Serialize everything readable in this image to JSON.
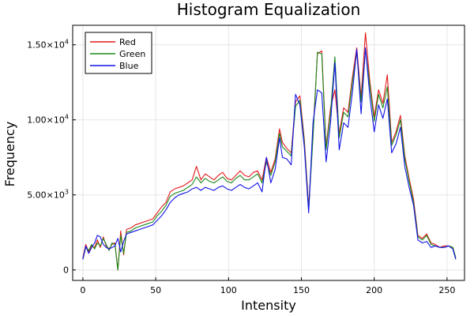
{
  "chart_data": {
    "type": "line",
    "title": "Histogram Equalization",
    "xlabel": "Intensity",
    "ylabel": "Frequency",
    "xlim": [
      -7,
      262
    ],
    "ylim": [
      -700,
      16300
    ],
    "x_ticks": [
      0,
      50,
      100,
      150,
      200,
      250
    ],
    "x_tick_labels": [
      "0",
      "50",
      "100",
      "150",
      "200",
      "250"
    ],
    "y_ticks": [
      0,
      5000,
      10000,
      15000
    ],
    "y_tick_labels": [
      {
        "mantissa": "0",
        "exponent": ""
      },
      {
        "mantissa": "5.00×10",
        "exponent": "3"
      },
      {
        "mantissa": "1.00×10",
        "exponent": "4"
      },
      {
        "mantissa": "1.50×10",
        "exponent": "4"
      }
    ],
    "grid": true,
    "legend_position": "top-left",
    "series": [
      {
        "name": "Red",
        "color": "#e41a1c",
        "x": [
          0,
          2,
          4,
          6,
          8,
          10,
          12,
          14,
          16,
          18,
          20,
          22,
          24,
          26,
          28,
          30,
          33,
          36,
          39,
          42,
          45,
          48,
          51,
          54,
          57,
          60,
          63,
          66,
          69,
          72,
          75,
          78,
          81,
          84,
          87,
          90,
          93,
          96,
          99,
          102,
          105,
          108,
          111,
          114,
          117,
          120,
          123,
          126,
          129,
          132,
          135,
          137,
          140,
          143,
          146,
          149,
          152,
          155,
          158,
          161,
          164,
          167,
          170,
          173,
          176,
          179,
          182,
          185,
          188,
          191,
          194,
          197,
          200,
          203,
          206,
          209,
          212,
          215,
          218,
          221,
          224,
          227,
          230,
          233,
          236,
          239,
          242,
          245,
          248,
          251,
          254,
          256
        ],
        "y": [
          800,
          1700,
          1200,
          1600,
          1500,
          2000,
          1500,
          2200,
          1600,
          1400,
          1700,
          1800,
          0,
          2600,
          1000,
          2700,
          2800,
          3000,
          3100,
          3200,
          3300,
          3400,
          3800,
          4200,
          4500,
          5200,
          5400,
          5500,
          5600,
          5800,
          6000,
          6900,
          6000,
          6400,
          6200,
          6000,
          6300,
          6500,
          6100,
          6000,
          6300,
          6600,
          6300,
          6200,
          6500,
          6600,
          6000,
          7500,
          6500,
          7400,
          9400,
          8500,
          8100,
          7800,
          11200,
          11600,
          8700,
          4200,
          9100,
          14400,
          14600,
          8200,
          10800,
          12000,
          9100,
          10800,
          10500,
          12800,
          14800,
          11500,
          15800,
          12600,
          10200,
          12000,
          11100,
          13000,
          8500,
          9200,
          10300,
          7600,
          6100,
          4700,
          2300,
          2100,
          2400,
          1800,
          1700,
          1500,
          1600,
          1600,
          1500,
          800
        ]
      },
      {
        "name": "Green",
        "color": "#1a8a1a",
        "x": [
          0,
          2,
          4,
          6,
          8,
          10,
          12,
          14,
          16,
          18,
          20,
          22,
          24,
          26,
          28,
          30,
          33,
          36,
          39,
          42,
          45,
          48,
          51,
          54,
          57,
          60,
          63,
          66,
          69,
          72,
          75,
          78,
          81,
          84,
          87,
          90,
          93,
          96,
          99,
          102,
          105,
          108,
          111,
          114,
          117,
          120,
          123,
          126,
          129,
          132,
          135,
          137,
          140,
          143,
          146,
          149,
          152,
          155,
          158,
          161,
          164,
          167,
          170,
          173,
          176,
          179,
          182,
          185,
          188,
          191,
          194,
          197,
          200,
          203,
          206,
          209,
          212,
          215,
          218,
          221,
          224,
          227,
          230,
          233,
          236,
          239,
          242,
          245,
          248,
          251,
          254,
          256
        ],
        "y": [
          700,
          1500,
          1300,
          1700,
          1400,
          1800,
          1600,
          2100,
          1700,
          1300,
          1800,
          1700,
          0,
          2300,
          1100,
          2500,
          2600,
          2800,
          2900,
          3000,
          3100,
          3200,
          3600,
          3900,
          4300,
          4900,
          5100,
          5200,
          5300,
          5500,
          5700,
          6200,
          5800,
          6100,
          5900,
          5800,
          6000,
          6200,
          5900,
          5800,
          6100,
          6300,
          6000,
          6000,
          6200,
          6400,
          5800,
          7200,
          6300,
          7200,
          9100,
          8200,
          7900,
          7600,
          10900,
          11300,
          8500,
          4000,
          8800,
          14500,
          14400,
          8000,
          10500,
          14200,
          8800,
          10500,
          10200,
          12500,
          14500,
          11200,
          14700,
          12300,
          9900,
          11700,
          10800,
          12200,
          8300,
          9000,
          10000,
          7400,
          5900,
          4500,
          2200,
          2000,
          2300,
          1700,
          1600,
          1500,
          1500,
          1600,
          1500,
          800
        ]
      },
      {
        "name": "Blue",
        "color": "#1212e8",
        "x": [
          0,
          2,
          4,
          6,
          8,
          10,
          12,
          14,
          16,
          18,
          20,
          22,
          24,
          26,
          28,
          30,
          33,
          36,
          39,
          42,
          45,
          48,
          51,
          54,
          57,
          60,
          63,
          66,
          69,
          72,
          75,
          78,
          81,
          84,
          87,
          90,
          93,
          96,
          99,
          102,
          105,
          108,
          111,
          114,
          117,
          120,
          123,
          126,
          129,
          132,
          135,
          137,
          140,
          143,
          146,
          149,
          152,
          155,
          158,
          161,
          164,
          167,
          170,
          173,
          176,
          179,
          182,
          185,
          188,
          191,
          194,
          197,
          200,
          203,
          206,
          209,
          212,
          215,
          218,
          221,
          224,
          227,
          230,
          233,
          236,
          239,
          242,
          245,
          248,
          251,
          254,
          256
        ],
        "y": [
          700,
          1600,
          1100,
          1500,
          1800,
          2300,
          2200,
          1700,
          1500,
          1400,
          1500,
          1600,
          2100,
          1200,
          1900,
          2400,
          2500,
          2600,
          2700,
          2800,
          2900,
          3000,
          3300,
          3600,
          4000,
          4500,
          4800,
          5000,
          5100,
          5200,
          5400,
          5500,
          5300,
          5500,
          5400,
          5300,
          5500,
          5600,
          5400,
          5300,
          5500,
          5700,
          5500,
          5400,
          5600,
          5800,
          5200,
          7500,
          5800,
          6700,
          8800,
          7500,
          7400,
          7000,
          11700,
          11000,
          8200,
          3800,
          9800,
          12000,
          11800,
          7200,
          9800,
          13800,
          8000,
          9800,
          9500,
          11800,
          14700,
          10400,
          14800,
          11600,
          9200,
          11000,
          10100,
          11400,
          7800,
          8400,
          9500,
          6900,
          5500,
          4300,
          2000,
          1800,
          1900,
          1500,
          1600,
          1500,
          1500,
          1600,
          1400,
          700
        ]
      }
    ]
  }
}
